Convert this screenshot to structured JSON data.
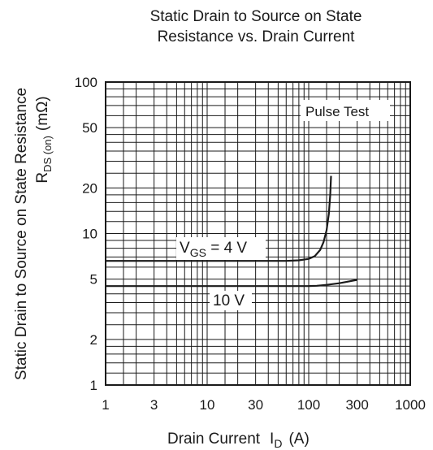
{
  "chart_data": {
    "type": "line",
    "title_line1": "Static Drain to Source on State",
    "title_line2": "Resistance vs. Drain Current",
    "xlabel": "Drain Current",
    "xlabel_symbol": "I",
    "xlabel_sub": "D",
    "xlabel_unit": "(A)",
    "ylabel_line1": "Static Drain to Source on State Resistance",
    "ylabel_symbol": "R",
    "ylabel_sub": "DS (on)",
    "ylabel_unit": "(mΩ)",
    "x_scale": "log",
    "y_scale": "log",
    "xlim": [
      1,
      1000
    ],
    "ylim": [
      1,
      100
    ],
    "x_ticks": [
      {
        "value": 1,
        "label": "1"
      },
      {
        "value": 3,
        "label": "3"
      },
      {
        "value": 10,
        "label": "10"
      },
      {
        "value": 30,
        "label": "30"
      },
      {
        "value": 100,
        "label": "100"
      },
      {
        "value": 300,
        "label": "300"
      },
      {
        "value": 1000,
        "label": "1000"
      }
    ],
    "y_ticks": [
      {
        "value": 1,
        "label": "1"
      },
      {
        "value": 2,
        "label": "2"
      },
      {
        "value": 5,
        "label": "5"
      },
      {
        "value": 10,
        "label": "10"
      },
      {
        "value": 20,
        "label": "20"
      },
      {
        "value": 50,
        "label": "50"
      },
      {
        "value": 100,
        "label": "100"
      }
    ],
    "grid": true,
    "annotation": "Pulse Test",
    "series": [
      {
        "label_prefix": "V",
        "label_sub": "GS",
        "label_suffix": " = 4 V",
        "x": [
          1,
          10,
          30,
          60,
          80,
          100,
          115,
          130,
          140,
          150,
          158,
          163,
          166
        ],
        "y": [
          6.6,
          6.6,
          6.6,
          6.6,
          6.65,
          6.8,
          7.1,
          7.8,
          8.8,
          10.5,
          13.5,
          18,
          24
        ]
      },
      {
        "label_prefix": "",
        "label_sub": "",
        "label_suffix": "10 V",
        "x": [
          1,
          10,
          50,
          100,
          120,
          150,
          200,
          250,
          300
        ],
        "y": [
          4.5,
          4.5,
          4.5,
          4.5,
          4.52,
          4.58,
          4.7,
          4.83,
          4.95
        ]
      }
    ]
  }
}
